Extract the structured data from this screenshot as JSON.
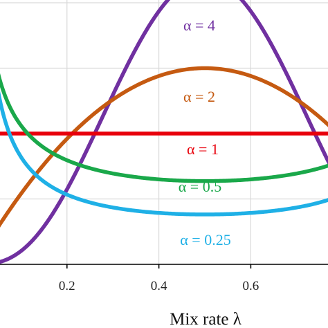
{
  "chart_data": {
    "type": "line",
    "title": "",
    "xlabel": "Mix rate λ",
    "ylabel": "",
    "xlim": [
      0.0,
      0.85
    ],
    "ylim": [
      0.0,
      2.0
    ],
    "xticks": [
      0.2,
      0.4,
      0.6
    ],
    "xtick_labels": [
      "0.2",
      "0.4",
      "0.6"
    ],
    "grid": true,
    "legend": "inline labels",
    "series": [
      {
        "label": "α = 4",
        "alpha": 4,
        "color": "#7030a0"
      },
      {
        "label": "α = 2",
        "alpha": 2,
        "color": "#c55a11"
      },
      {
        "label": "α = 1",
        "alpha": 1,
        "color": "#e8000b"
      },
      {
        "label": "α = 0.5",
        "alpha": 0.5,
        "color": "#1aa84a"
      },
      {
        "label": "α = 0.25",
        "alpha": 0.25,
        "color": "#1fb0e6"
      }
    ]
  }
}
